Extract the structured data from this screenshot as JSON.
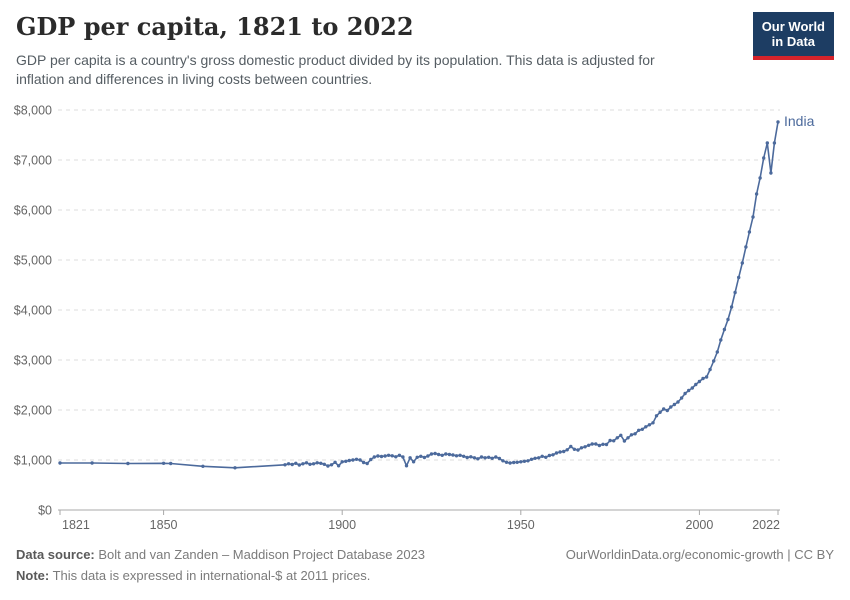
{
  "header": {
    "title": "GDP per capita, 1821 to 2022",
    "subtitle": "GDP per capita is a country's gross domestic product divided by its population. This data is adjusted for inflation and differences in living costs between countries.",
    "logo": {
      "line1": "Our World",
      "line2": "in Data",
      "bg_color": "#1d3d63",
      "accent_color": "#d5232b"
    }
  },
  "chart_data": {
    "type": "line",
    "title": "GDP per capita, 1821 to 2022",
    "xlabel": "",
    "ylabel": "",
    "x_domain": [
      1821,
      2022
    ],
    "ylim": [
      0,
      8000
    ],
    "grid": "horizontal-dashed",
    "legend_position": "end-of-line-label",
    "y_ticks": [
      0,
      1000,
      2000,
      3000,
      4000,
      5000,
      6000,
      7000,
      8000
    ],
    "y_tick_labels": [
      "$0",
      "$1,000",
      "$2,000",
      "$3,000",
      "$4,000",
      "$5,000",
      "$6,000",
      "$7,000",
      "$8,000"
    ],
    "x_ticks": [
      1821,
      1850,
      1900,
      1950,
      2000,
      2022
    ],
    "x_tick_labels": [
      "1821",
      "1850",
      "1900",
      "1950",
      "2000",
      "2022"
    ],
    "end_label": "India",
    "series": [
      {
        "name": "India",
        "color": "#4c6a9c",
        "points": [
          [
            1821,
            940
          ],
          [
            1830,
            940
          ],
          [
            1840,
            930
          ],
          [
            1850,
            935
          ],
          [
            1852,
            930
          ],
          [
            1861,
            875
          ],
          [
            1870,
            845
          ],
          [
            1884,
            905
          ],
          [
            1885,
            925
          ],
          [
            1886,
            910
          ],
          [
            1887,
            935
          ],
          [
            1888,
            900
          ],
          [
            1889,
            925
          ],
          [
            1890,
            945
          ],
          [
            1891,
            915
          ],
          [
            1892,
            925
          ],
          [
            1893,
            945
          ],
          [
            1894,
            935
          ],
          [
            1895,
            915
          ],
          [
            1896,
            880
          ],
          [
            1897,
            905
          ],
          [
            1898,
            955
          ],
          [
            1899,
            885
          ],
          [
            1900,
            965
          ],
          [
            1901,
            975
          ],
          [
            1902,
            990
          ],
          [
            1903,
            1000
          ],
          [
            1904,
            1015
          ],
          [
            1905,
            1000
          ],
          [
            1906,
            950
          ],
          [
            1907,
            930
          ],
          [
            1908,
            1010
          ],
          [
            1909,
            1060
          ],
          [
            1910,
            1080
          ],
          [
            1911,
            1070
          ],
          [
            1912,
            1080
          ],
          [
            1913,
            1095
          ],
          [
            1914,
            1085
          ],
          [
            1915,
            1065
          ],
          [
            1916,
            1095
          ],
          [
            1917,
            1060
          ],
          [
            1918,
            885
          ],
          [
            1919,
            1045
          ],
          [
            1920,
            965
          ],
          [
            1921,
            1055
          ],
          [
            1922,
            1075
          ],
          [
            1923,
            1050
          ],
          [
            1924,
            1080
          ],
          [
            1925,
            1120
          ],
          [
            1926,
            1130
          ],
          [
            1927,
            1110
          ],
          [
            1928,
            1095
          ],
          [
            1929,
            1120
          ],
          [
            1930,
            1110
          ],
          [
            1931,
            1100
          ],
          [
            1932,
            1085
          ],
          [
            1933,
            1095
          ],
          [
            1934,
            1075
          ],
          [
            1935,
            1050
          ],
          [
            1936,
            1065
          ],
          [
            1937,
            1045
          ],
          [
            1938,
            1025
          ],
          [
            1939,
            1060
          ],
          [
            1940,
            1045
          ],
          [
            1941,
            1055
          ],
          [
            1942,
            1035
          ],
          [
            1943,
            1060
          ],
          [
            1944,
            1030
          ],
          [
            1945,
            985
          ],
          [
            1946,
            955
          ],
          [
            1947,
            940
          ],
          [
            1948,
            950
          ],
          [
            1949,
            955
          ],
          [
            1950,
            965
          ],
          [
            1951,
            975
          ],
          [
            1952,
            985
          ],
          [
            1953,
            1015
          ],
          [
            1954,
            1035
          ],
          [
            1955,
            1045
          ],
          [
            1956,
            1075
          ],
          [
            1957,
            1055
          ],
          [
            1958,
            1090
          ],
          [
            1959,
            1105
          ],
          [
            1960,
            1140
          ],
          [
            1961,
            1160
          ],
          [
            1962,
            1170
          ],
          [
            1963,
            1205
          ],
          [
            1964,
            1270
          ],
          [
            1965,
            1215
          ],
          [
            1966,
            1200
          ],
          [
            1967,
            1245
          ],
          [
            1968,
            1265
          ],
          [
            1969,
            1295
          ],
          [
            1970,
            1320
          ],
          [
            1971,
            1320
          ],
          [
            1972,
            1290
          ],
          [
            1973,
            1315
          ],
          [
            1974,
            1310
          ],
          [
            1975,
            1390
          ],
          [
            1976,
            1385
          ],
          [
            1977,
            1445
          ],
          [
            1978,
            1495
          ],
          [
            1979,
            1380
          ],
          [
            1980,
            1445
          ],
          [
            1981,
            1505
          ],
          [
            1982,
            1525
          ],
          [
            1983,
            1595
          ],
          [
            1984,
            1615
          ],
          [
            1985,
            1665
          ],
          [
            1986,
            1705
          ],
          [
            1987,
            1745
          ],
          [
            1988,
            1885
          ],
          [
            1989,
            1955
          ],
          [
            1990,
            2020
          ],
          [
            1991,
            1990
          ],
          [
            1992,
            2060
          ],
          [
            1993,
            2110
          ],
          [
            1994,
            2160
          ],
          [
            1995,
            2240
          ],
          [
            1996,
            2330
          ],
          [
            1997,
            2390
          ],
          [
            1998,
            2440
          ],
          [
            1999,
            2510
          ],
          [
            2000,
            2570
          ],
          [
            2001,
            2630
          ],
          [
            2002,
            2660
          ],
          [
            2003,
            2810
          ],
          [
            2004,
            2980
          ],
          [
            2005,
            3160
          ],
          [
            2006,
            3400
          ],
          [
            2007,
            3610
          ],
          [
            2008,
            3810
          ],
          [
            2009,
            4060
          ],
          [
            2010,
            4350
          ],
          [
            2011,
            4650
          ],
          [
            2012,
            4940
          ],
          [
            2013,
            5260
          ],
          [
            2014,
            5560
          ],
          [
            2015,
            5860
          ],
          [
            2016,
            6320
          ],
          [
            2017,
            6640
          ],
          [
            2018,
            7040
          ],
          [
            2019,
            7340
          ],
          [
            2020,
            6740
          ],
          [
            2021,
            7340
          ],
          [
            2022,
            7760
          ]
        ]
      }
    ],
    "style": {
      "line_color": "#4c6a9c",
      "grid_color": "#dcdcdc",
      "axis_color": "#a8a8a8",
      "tick_label_color": "#666666"
    }
  },
  "footer": {
    "source_label": "Data source:",
    "source_text": " Bolt and van Zanden – Maddison Project Database 2023",
    "note_label": "Note:",
    "note_text": " This data is expressed in international-$ at 2011 prices.",
    "url_text": "OurWorldinData.org/economic-growth | CC BY"
  }
}
